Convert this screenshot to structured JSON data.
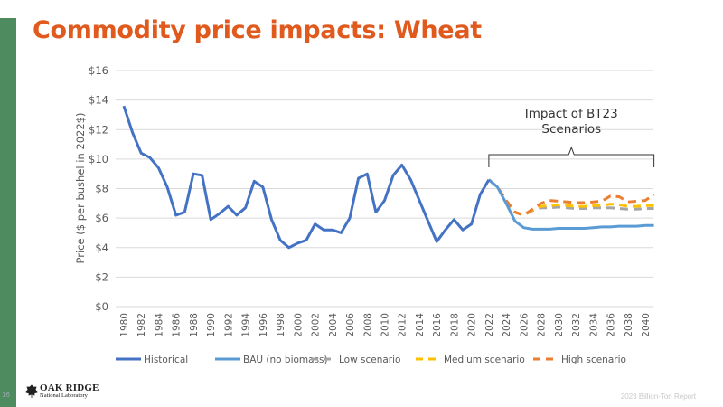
{
  "slide": {
    "title": "Commodity price impacts: Wheat",
    "slide_number": "16",
    "logo_line1": "OAK RIDGE",
    "logo_line2": "National Laboratory",
    "footer": "2023 Billion-Ton Report",
    "accent_color": "#e05a1e",
    "sidebar_color": "#4e8b5f"
  },
  "chart_data": {
    "type": "line",
    "title": "",
    "xlabel": "",
    "ylabel": "Price ($ per bushel in 2022$)",
    "ylim": [
      0,
      16
    ],
    "yticks": [
      0,
      2,
      4,
      6,
      8,
      10,
      12,
      14,
      16
    ],
    "ytick_labels": [
      "$0",
      "$2",
      "$4",
      "$6",
      "$8",
      "$10",
      "$12",
      "$14",
      "$16"
    ],
    "xlim": [
      1980,
      2041
    ],
    "xtick_labels": [
      "1980",
      "1982",
      "1984",
      "1986",
      "1988",
      "1990",
      "1992",
      "1994",
      "1996",
      "1998",
      "2000",
      "2002",
      "2004",
      "2006",
      "2008",
      "2010",
      "2012",
      "2014",
      "2016",
      "2018",
      "2020",
      "2022",
      "2024",
      "2026",
      "2028",
      "2030",
      "2032",
      "2034",
      "2036",
      "2038",
      "2040"
    ],
    "grid": true,
    "legend_position": "bottom",
    "annotation": {
      "text_line1": "Impact of BT23",
      "text_line2": "Scenarios",
      "from": 2022,
      "to": 2041
    },
    "series": [
      {
        "name": "Historical",
        "color": "#4472c4",
        "dash": "solid",
        "x": [
          1980,
          1981,
          1982,
          1983,
          1984,
          1985,
          1986,
          1987,
          1988,
          1989,
          1990,
          1991,
          1992,
          1993,
          1994,
          1995,
          1996,
          1997,
          1998,
          1999,
          2000,
          2001,
          2002,
          2003,
          2004,
          2005,
          2006,
          2007,
          2008,
          2009,
          2010,
          2011,
          2012,
          2013,
          2014,
          2015,
          2016,
          2017,
          2018,
          2019,
          2020,
          2021,
          2022
        ],
        "values": [
          13.6,
          11.8,
          10.4,
          10.1,
          9.4,
          8.1,
          6.2,
          6.4,
          9.0,
          8.9,
          5.9,
          6.3,
          6.8,
          6.2,
          6.7,
          8.5,
          8.1,
          5.9,
          4.5,
          4.0,
          4.3,
          4.5,
          5.6,
          5.2,
          5.2,
          5.0,
          6.0,
          8.7,
          9.0,
          6.4,
          7.2,
          8.9,
          9.6,
          8.6,
          7.2,
          5.8,
          4.4,
          5.2,
          5.9,
          5.2,
          5.6,
          7.6,
          8.6
        ]
      },
      {
        "name": "BAU (no biomass)",
        "color": "#5b9bd5",
        "dash": "solid",
        "x": [
          2022,
          2023,
          2024,
          2025,
          2026,
          2027,
          2028,
          2029,
          2030,
          2031,
          2032,
          2033,
          2034,
          2035,
          2036,
          2037,
          2038,
          2039,
          2040,
          2041
        ],
        "values": [
          8.6,
          8.1,
          7.0,
          5.8,
          5.35,
          5.25,
          5.25,
          5.25,
          5.3,
          5.3,
          5.3,
          5.3,
          5.35,
          5.4,
          5.4,
          5.45,
          5.45,
          5.45,
          5.5,
          5.5
        ]
      },
      {
        "name": "Low scenario",
        "color": "#a5a5a5",
        "dash": "dashed",
        "x": [
          2022,
          2023,
          2024,
          2025,
          2026,
          2027,
          2028,
          2029,
          2030,
          2031,
          2032,
          2033,
          2034,
          2035,
          2036,
          2037,
          2038,
          2039,
          2040,
          2041
        ],
        "values": [
          8.6,
          8.1,
          7.2,
          6.4,
          6.2,
          6.5,
          6.7,
          6.7,
          6.75,
          6.7,
          6.65,
          6.65,
          6.7,
          6.7,
          6.7,
          6.65,
          6.6,
          6.6,
          6.65,
          6.65
        ]
      },
      {
        "name": "Medium scenario",
        "color": "#ffc000",
        "dash": "dashed",
        "x": [
          2022,
          2023,
          2024,
          2025,
          2026,
          2027,
          2028,
          2029,
          2030,
          2031,
          2032,
          2033,
          2034,
          2035,
          2036,
          2037,
          2038,
          2039,
          2040,
          2041
        ],
        "values": [
          8.6,
          8.1,
          7.2,
          6.4,
          6.2,
          6.55,
          6.8,
          6.85,
          6.9,
          6.85,
          6.8,
          6.8,
          6.85,
          6.85,
          6.95,
          6.9,
          6.8,
          6.8,
          6.85,
          6.85
        ]
      },
      {
        "name": "High scenario",
        "color": "#ed7d31",
        "dash": "dashed",
        "x": [
          2022,
          2023,
          2024,
          2025,
          2026,
          2027,
          2028,
          2029,
          2030,
          2031,
          2032,
          2033,
          2034,
          2035,
          2036,
          2037,
          2038,
          2039,
          2040,
          2041
        ],
        "values": [
          8.6,
          8.1,
          7.2,
          6.4,
          6.2,
          6.6,
          7.0,
          7.2,
          7.15,
          7.1,
          7.05,
          7.05,
          7.1,
          7.15,
          7.5,
          7.45,
          7.1,
          7.15,
          7.2,
          7.6
        ]
      }
    ]
  }
}
